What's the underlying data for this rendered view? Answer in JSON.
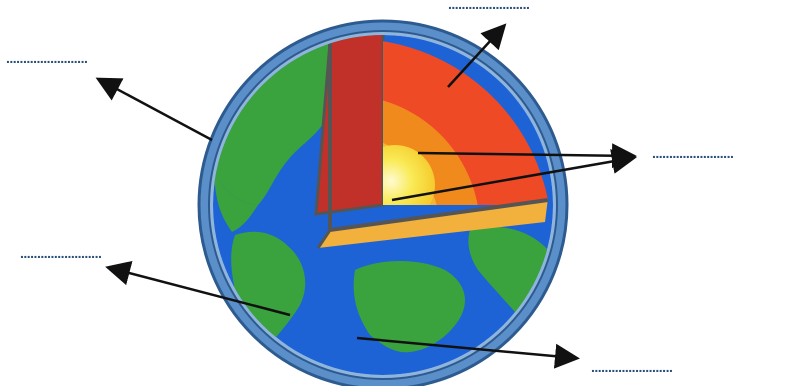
{
  "diagram": {
    "kind": "earth-layers-cutaway",
    "blanks": [
      {
        "id": "top",
        "placeholder": "........................"
      },
      {
        "id": "left-upper",
        "placeholder": "........................"
      },
      {
        "id": "right",
        "placeholder": "........................"
      },
      {
        "id": "left-lower",
        "placeholder": "........................"
      },
      {
        "id": "bottom-right",
        "placeholder": "........................"
      }
    ],
    "colors": {
      "ocean": "#1d63d6",
      "land": "#3aa33d",
      "atmosphere_ring": "#5b8fc9",
      "crust": "#c1312a",
      "mantle": "#ee4a26",
      "outer_core": "#f18a1c",
      "inner_core": "#f7d23a",
      "core_center": "#fffbd1",
      "arrow": "#111111",
      "blank_dots": "#2a4f7a"
    }
  }
}
